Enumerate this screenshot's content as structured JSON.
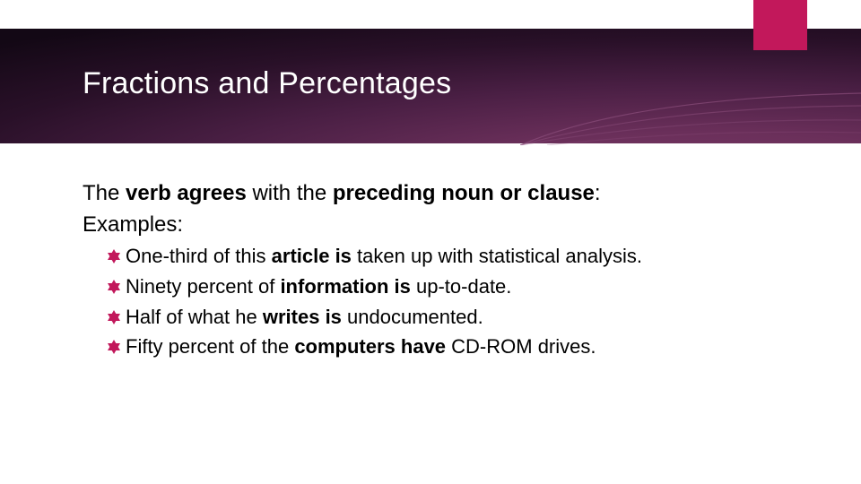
{
  "colors": {
    "accent": "#c2185b",
    "title_text": "#ffffff",
    "body_text": "#000000",
    "band_gradient_inner": "#7a3a66",
    "band_gradient_mid": "#4a1f44",
    "band_gradient_outer": "#130815",
    "swoosh_stroke": "#8a4d7a"
  },
  "title": "Fractions and Percentages",
  "lead": {
    "pre": "The ",
    "bold1": "verb agrees",
    "mid": " with the ",
    "bold2": "preceding noun or clause",
    "post": ":"
  },
  "examples_label": "Examples:",
  "bullets": [
    {
      "segments": [
        {
          "t": "One-third of this ",
          "b": false
        },
        {
          "t": "article is",
          "b": true
        },
        {
          "t": " taken up with statistical analysis.",
          "b": false
        }
      ]
    },
    {
      "segments": [
        {
          "t": "Ninety percent of ",
          "b": false
        },
        {
          "t": "information is",
          "b": true
        },
        {
          "t": " up-to-date.",
          "b": false
        }
      ]
    },
    {
      "segments": [
        {
          "t": "Half of what he ",
          "b": false
        },
        {
          "t": "writes is",
          "b": true
        },
        {
          "t": " undocumented.",
          "b": false
        }
      ]
    },
    {
      "segments": [
        {
          "t": "Fifty percent of the ",
          "b": false
        },
        {
          "t": "computers have",
          "b": true
        },
        {
          "t": " CD-ROM drives.",
          "b": false
        }
      ]
    }
  ]
}
